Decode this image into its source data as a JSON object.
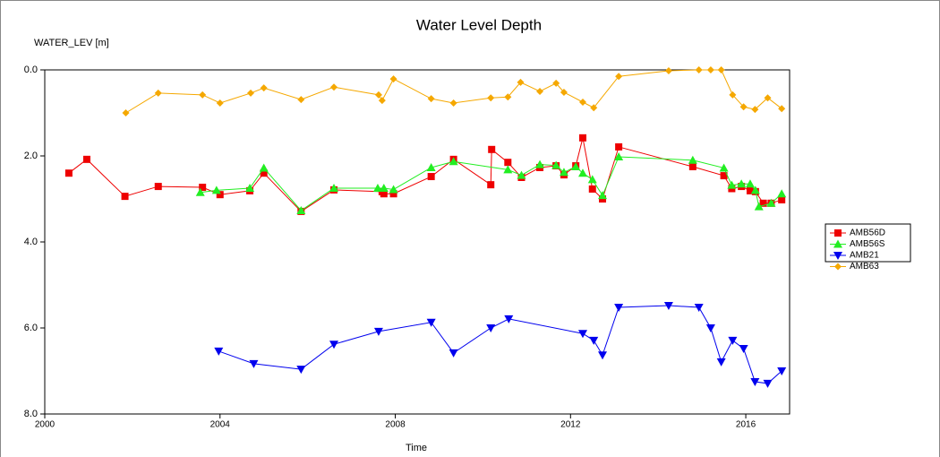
{
  "chart_data": {
    "type": "line",
    "title": "Water Level Depth",
    "ylabel": "WATER_LEV [m]",
    "xlabel": "Time",
    "xlim": [
      2000,
      2017
    ],
    "xticks": [
      2000,
      2004,
      2008,
      2012,
      2016
    ],
    "ylim": [
      0,
      8
    ],
    "y_inverted": true,
    "yticks": [
      {
        "value": 0,
        "label": "0.0"
      },
      {
        "value": 2,
        "label": "2.0"
      },
      {
        "value": 4,
        "label": "4.0"
      },
      {
        "value": 6,
        "label": "6.0"
      },
      {
        "value": 8,
        "label": "8.0"
      }
    ],
    "grid": false,
    "legend": "right",
    "series": [
      {
        "name": "AMB56D",
        "color": "#ee0000",
        "marker": "square",
        "x": [
          2000.55,
          2000.96,
          2001.83,
          2002.59,
          2003.6,
          2004.0,
          2004.68,
          2005.0,
          2005.85,
          2006.6,
          2007.7,
          2007.74,
          2007.96,
          2008.82,
          2009.33,
          2010.18,
          2010.2,
          2010.57,
          2010.88,
          2011.3,
          2011.67,
          2011.85,
          2012.12,
          2012.28,
          2012.5,
          2012.73,
          2013.1,
          2014.79,
          2015.5,
          2015.68,
          2015.9,
          2016.1,
          2016.22,
          2016.4,
          2016.58,
          2016.82
        ],
        "values": [
          2.4,
          2.08,
          2.94,
          2.71,
          2.73,
          2.9,
          2.81,
          2.4,
          3.29,
          2.79,
          2.83,
          2.88,
          2.88,
          2.48,
          2.08,
          2.67,
          1.85,
          2.15,
          2.5,
          2.27,
          2.23,
          2.44,
          2.23,
          1.58,
          2.77,
          3.0,
          1.79,
          2.25,
          2.46,
          2.76,
          2.71,
          2.81,
          2.83,
          3.1,
          3.1,
          3.02
        ]
      },
      {
        "name": "AMB56S",
        "color": "#22ee22",
        "marker": "triangle-up",
        "x": [
          2003.55,
          2003.92,
          2004.68,
          2005.0,
          2005.85,
          2006.6,
          2007.6,
          2007.74,
          2007.96,
          2008.82,
          2009.33,
          2010.57,
          2010.88,
          2011.3,
          2011.67,
          2011.85,
          2012.12,
          2012.28,
          2012.5,
          2012.73,
          2013.1,
          2014.79,
          2015.5,
          2015.68,
          2015.9,
          2016.1,
          2016.22,
          2016.3,
          2016.58,
          2016.82
        ],
        "values": [
          2.85,
          2.8,
          2.75,
          2.28,
          3.27,
          2.75,
          2.75,
          2.75,
          2.78,
          2.27,
          2.13,
          2.32,
          2.45,
          2.2,
          2.22,
          2.38,
          2.25,
          2.4,
          2.55,
          2.92,
          2.02,
          2.1,
          2.28,
          2.68,
          2.65,
          2.65,
          2.8,
          3.18,
          3.1,
          2.88
        ]
      },
      {
        "name": "AMB21",
        "color": "#0000ee",
        "marker": "triangle-down",
        "x": [
          2003.97,
          2004.77,
          2005.85,
          2006.6,
          2007.62,
          2008.82,
          2009.33,
          2010.18,
          2010.59,
          2012.28,
          2012.53,
          2012.73,
          2013.1,
          2014.24,
          2014.93,
          2015.2,
          2015.44,
          2015.7,
          2015.95,
          2016.21,
          2016.5,
          2016.82
        ],
        "values": [
          6.54,
          6.83,
          6.96,
          6.38,
          6.08,
          5.87,
          6.58,
          6.0,
          5.79,
          6.13,
          6.29,
          6.63,
          5.52,
          5.48,
          5.52,
          6.0,
          6.79,
          6.29,
          6.48,
          7.25,
          7.29,
          7.0
        ]
      },
      {
        "name": "AMB63",
        "color": "#f5a800",
        "marker": "diamond",
        "x": [
          2001.85,
          2002.59,
          2003.6,
          2004.0,
          2004.7,
          2005.0,
          2005.85,
          2006.6,
          2007.62,
          2007.7,
          2007.96,
          2008.82,
          2009.33,
          2010.18,
          2010.57,
          2010.86,
          2011.3,
          2011.67,
          2011.85,
          2012.28,
          2012.53,
          2013.1,
          2014.24,
          2014.93,
          2015.2,
          2015.44,
          2015.7,
          2015.95,
          2016.21,
          2016.5,
          2016.82
        ],
        "values": [
          1.0,
          0.54,
          0.58,
          0.77,
          0.54,
          0.42,
          0.69,
          0.4,
          0.58,
          0.71,
          0.21,
          0.67,
          0.77,
          0.65,
          0.63,
          0.29,
          0.5,
          0.31,
          0.52,
          0.75,
          0.88,
          0.15,
          0.02,
          0,
          0,
          0,
          0.58,
          0.86,
          0.92,
          0.65,
          0.9
        ]
      }
    ]
  }
}
